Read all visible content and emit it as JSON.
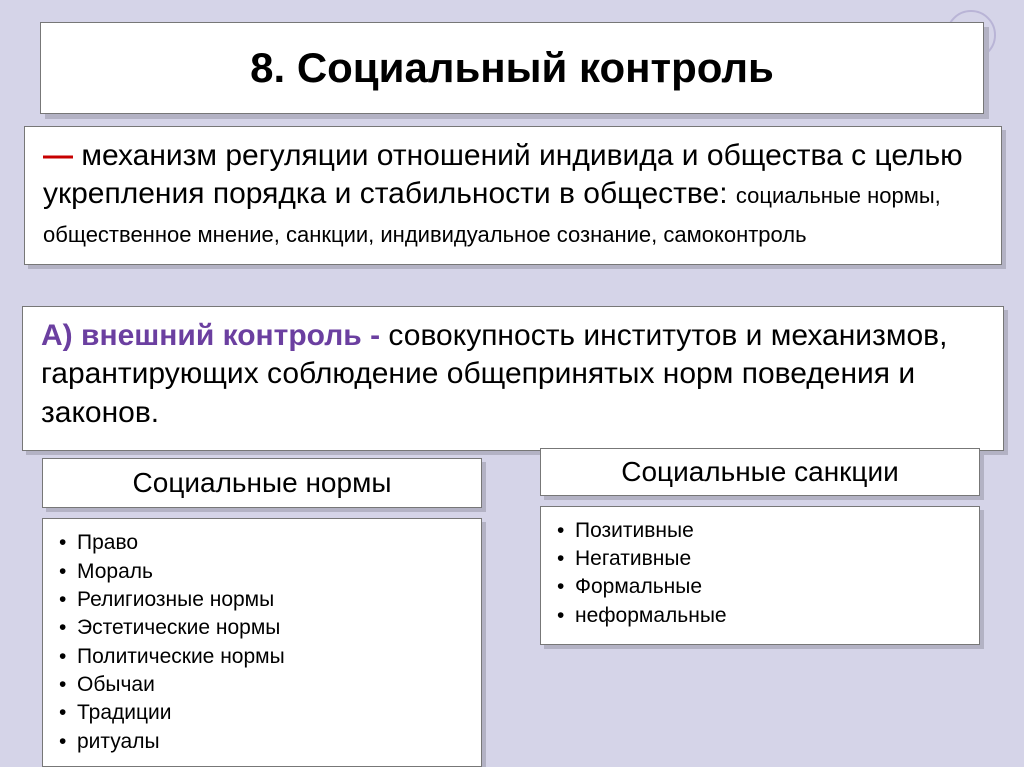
{
  "title": "8. Социальный контроль",
  "definition": {
    "dash": "—",
    "main": " механизм регуляции отношений индивида и общества с целью укрепления порядка и стабильности в обществе: ",
    "sub": "социальные нормы, общественное мнение, санкции, индивидуальное сознание, самоконтроль"
  },
  "external": {
    "label": "А) ",
    "term": "внешний контроль - ",
    "text": "совокупность институтов и механизмов, гарантирующих соблюдение общепринятых норм поведения и законов."
  },
  "norms": {
    "header": "Социальные нормы",
    "items": [
      "Право",
      "Мораль",
      "Религиозные нормы",
      "Эстетические нормы",
      "Политические нормы",
      "Обычаи",
      "Традиции",
      "ритуалы"
    ]
  },
  "sanctions": {
    "header": "Социальные санкции",
    "items": [
      "Позитивные",
      "Негативные",
      "Формальные",
      "неформальные"
    ]
  },
  "colors": {
    "background": "#d5d4e8",
    "box_bg": "#ffffff",
    "shadow": "#b3b2c4",
    "red": "#c70000",
    "purple": "#6b3fa0",
    "deco": "#b9b4d6"
  }
}
